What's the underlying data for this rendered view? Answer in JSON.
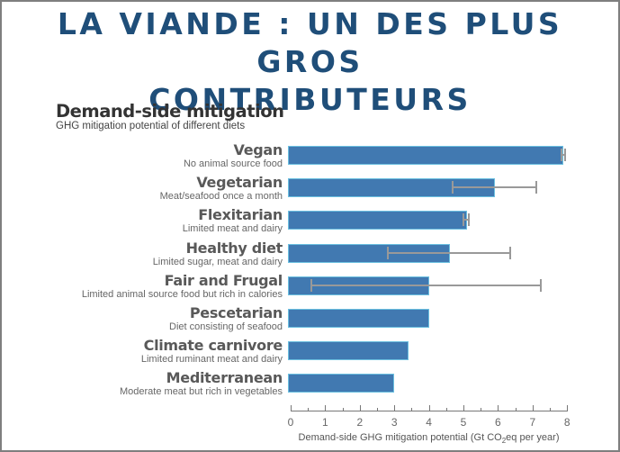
{
  "slide": {
    "title_line1": "LA VIANDE : UN DES PLUS GROS",
    "title_line2": "CONTRIBUTEURS",
    "title_color": "#1f4e79"
  },
  "chart_data": {
    "type": "bar",
    "orientation": "horizontal",
    "title": "Demand-side mitigation",
    "subtitle": "GHG mitigation potential of different diets",
    "xlabel": "Demand-side GHG mitigation potential (Gt CO2eq per year)",
    "xlabel_pre": "Demand-side GHG mitigation potential (Gt CO",
    "xlabel_sub": "2",
    "xlabel_post": "eq per year)",
    "ylabel": "",
    "xlim": [
      0,
      8
    ],
    "xticks": [
      "0",
      "1",
      "2",
      "3",
      "4",
      "5",
      "6",
      "7",
      "8"
    ],
    "bar_color": "#4179b1",
    "error_color": "#999999",
    "categories": [
      "Vegan",
      "Vegetarian",
      "Flexitarian",
      "Healthy diet",
      "Fair and Frugal",
      "Pescetarian",
      "Climate carnivore",
      "Mediterranean"
    ],
    "descriptions": [
      "No animal source food",
      "Meat/seafood once a month",
      "Limited meat and dairy",
      "Limited sugar, meat and dairy",
      "Limited animal source food but rich in calories",
      "Diet consisting of seafood",
      "Limited ruminant meat and dairy",
      "Moderate meat but rich in vegetables"
    ],
    "values": [
      7.9,
      5.9,
      5.1,
      4.6,
      4.0,
      4.0,
      3.4,
      3.0
    ],
    "error_low": [
      7.85,
      4.7,
      5.0,
      2.8,
      0.6,
      null,
      null,
      null
    ],
    "error_high": [
      7.95,
      7.1,
      5.15,
      6.35,
      7.25,
      null,
      null,
      null
    ],
    "grid": false,
    "legend": null
  }
}
